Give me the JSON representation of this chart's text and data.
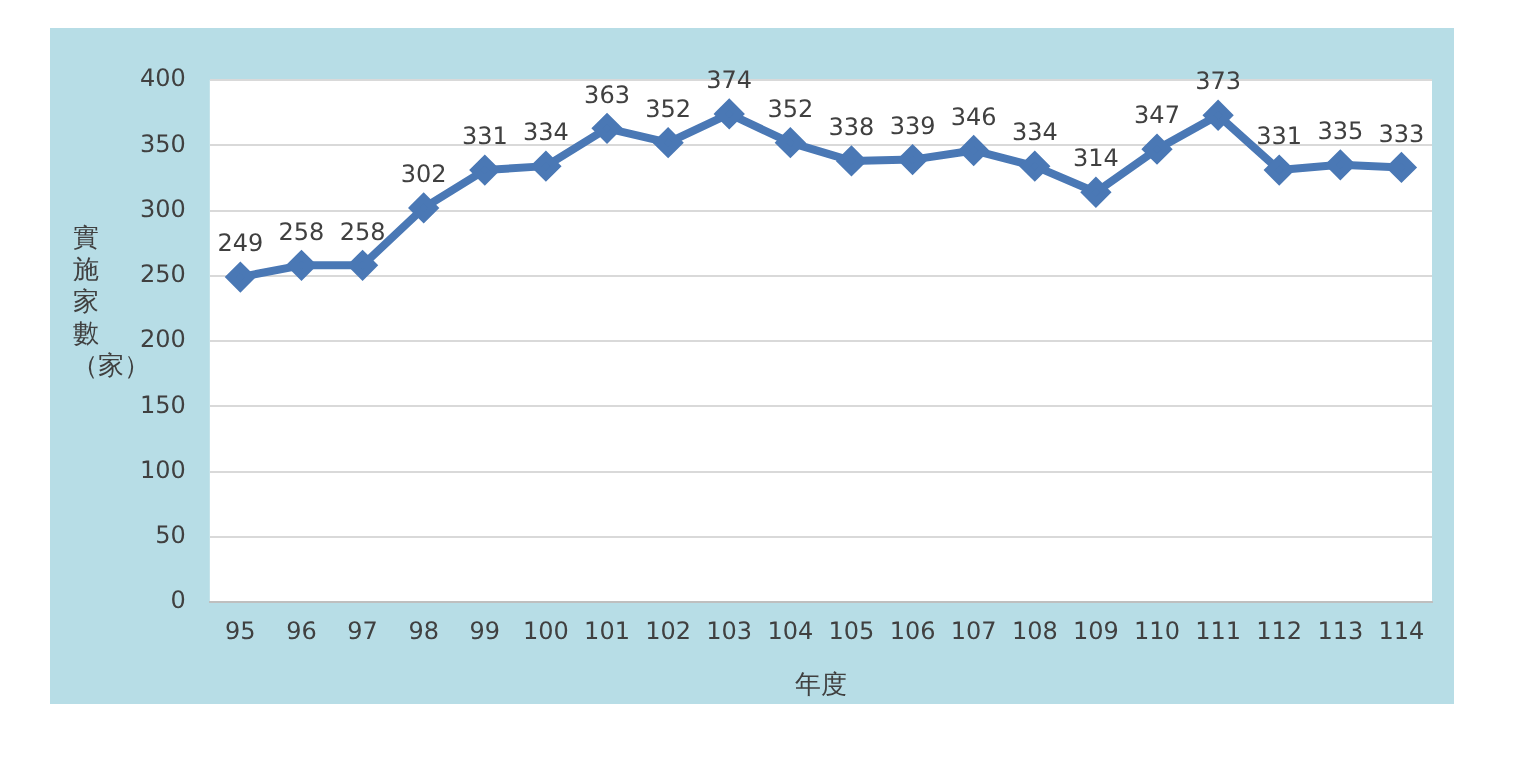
{
  "chart_data": {
    "type": "line",
    "xlabel": "年度",
    "ylabel": "實施家數（家）",
    "categories": [
      "95",
      "96",
      "97",
      "98",
      "99",
      "100",
      "101",
      "102",
      "103",
      "104",
      "105",
      "106",
      "107",
      "108",
      "109",
      "110",
      "111",
      "112",
      "113",
      "114"
    ],
    "series": [
      {
        "color": "#4a78b5",
        "values": [
          249,
          258,
          258,
          302,
          331,
          334,
          363,
          352,
          374,
          352,
          338,
          339,
          346,
          334,
          314,
          347,
          373,
          331,
          335,
          333
        ]
      }
    ],
    "ylim": [
      0,
      400
    ],
    "yticks": [
      0,
      50,
      100,
      150,
      200,
      250,
      300,
      350,
      400
    ],
    "grid": "y",
    "legend": false,
    "marker": "diamond",
    "line_style": "solid",
    "data_labels": true
  }
}
